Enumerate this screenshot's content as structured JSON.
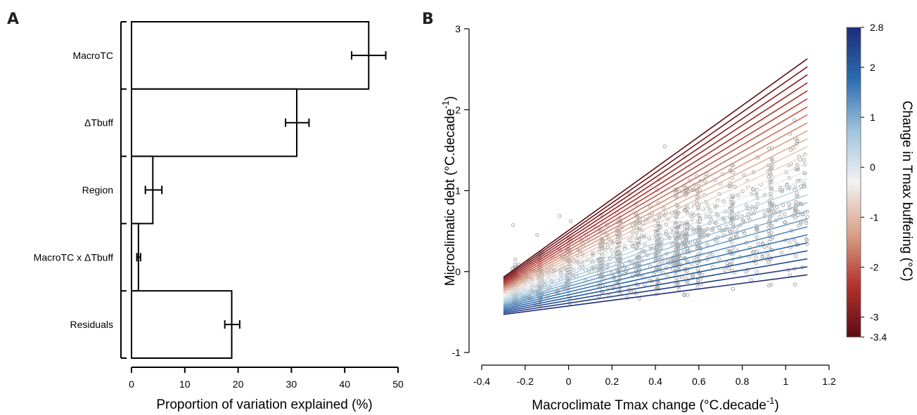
{
  "panel_labels": [
    "A",
    "B"
  ],
  "chart_data": [
    {
      "type": "bar",
      "orientation": "horizontal",
      "panel": "A",
      "categories": [
        "MacroTC",
        "ΔTbuff",
        "Region",
        "MacroTC x ΔTbuff",
        "Residuals"
      ],
      "values": [
        44.5,
        31.0,
        4.0,
        1.3,
        18.8
      ],
      "error_low": [
        41.3,
        28.9,
        2.6,
        1.0,
        17.5
      ],
      "error_high": [
        47.7,
        33.3,
        5.7,
        1.7,
        20.3
      ],
      "xlabel": "Proportion of variation explained (%)",
      "xlim": [
        0,
        50
      ],
      "xticks": [
        0,
        10,
        20,
        30,
        40,
        50
      ],
      "bar_fill": "#ffffff",
      "bar_stroke": "#000000"
    },
    {
      "type": "line",
      "panel": "B",
      "xlabel": "Macroclimate Tmax change (°C.decade",
      "xlabel_superscript": "-1",
      "xlabel_suffix": ")",
      "ylabel": "Microclimatic debt (°C.decade",
      "ylabel_superscript": "-1",
      "ylabel_suffix": ")",
      "xlim": [
        -0.4,
        1.2
      ],
      "ylim": [
        -1,
        3
      ],
      "xticks": [
        -0.4,
        -0.2,
        0,
        0.2,
        0.4,
        0.6,
        0.8,
        1,
        1.2
      ],
      "yticks": [
        -1,
        0,
        1,
        2,
        3
      ],
      "fit_lines": {
        "x_range": [
          -0.3,
          1.1
        ],
        "count": 28,
        "buffering_range": [
          -3.4,
          2.8
        ],
        "top_line": {
          "y_start": -0.07,
          "y_end": 2.63
        },
        "bottom_line": {
          "y_start": -0.53,
          "y_end": -0.04
        }
      },
      "scatter": {
        "color": "#a8a8a8",
        "point_count": 1300,
        "x_columns": [
          -0.25,
          -0.13,
          0.0,
          0.15,
          0.23,
          0.32,
          0.41,
          0.5,
          0.54,
          0.6,
          0.75,
          0.93,
          1.05
        ]
      },
      "colorbar": {
        "title": "Change in Tmax buffering (°C)",
        "min": -3.4,
        "max": 2.8,
        "tick_labels": [
          "2.8",
          "2",
          "1",
          "0",
          "-1",
          "-2",
          "-3",
          "-3.4"
        ],
        "tick_values": [
          2.8,
          2,
          1,
          0,
          -1,
          -2,
          -3,
          -3.4
        ],
        "colors": [
          "#1d2c7a",
          "#2b6cb0",
          "#9fc4dc",
          "#f2f2f2",
          "#d9a189",
          "#b3322d",
          "#5b0c14"
        ]
      }
    }
  ]
}
